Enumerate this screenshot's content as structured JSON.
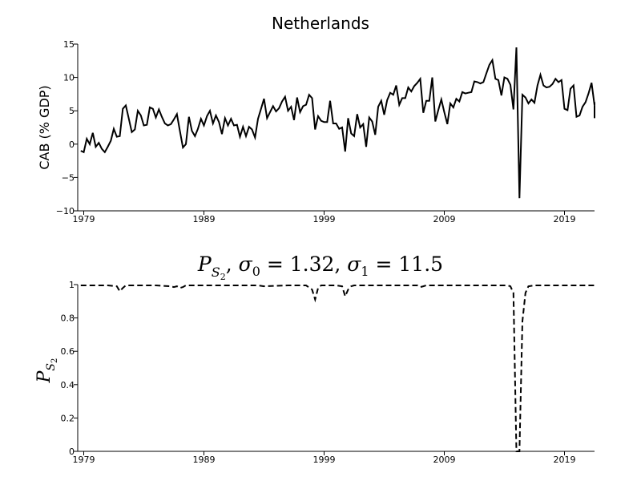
{
  "chart_data": [
    {
      "type": "line",
      "title": "Netherlands",
      "xlabel": "",
      "ylabel": "CAB (% GDP)",
      "xlim": [
        1978.5,
        2021.5
      ],
      "ylim": [
        -10,
        15
      ],
      "xticks": [
        1979,
        1989,
        1999,
        2009,
        2019
      ],
      "xtick_labels": [
        "1979",
        "1989",
        "1999",
        "2009",
        "2019"
      ],
      "yticks": [
        -10,
        -5,
        0,
        5,
        10,
        15
      ],
      "ytick_labels": [
        "−10",
        "−5",
        "0",
        "5",
        "10",
        "15"
      ],
      "grid": false,
      "series": [
        {
          "line_style": "solid",
          "color": "#000000",
          "points": [
            [
              1978.75,
              -1.0
            ],
            [
              1979.0,
              -1.2
            ],
            [
              1979.25,
              0.8
            ],
            [
              1979.5,
              0.0
            ],
            [
              1979.75,
              1.7
            ],
            [
              1980.0,
              -0.4
            ],
            [
              1980.25,
              0.2
            ],
            [
              1980.5,
              -0.7
            ],
            [
              1980.75,
              -1.2
            ],
            [
              1981.0,
              -0.4
            ],
            [
              1981.25,
              0.5
            ],
            [
              1981.5,
              2.3
            ],
            [
              1981.75,
              1.1
            ],
            [
              1982.0,
              1.2
            ],
            [
              1982.25,
              5.3
            ],
            [
              1982.5,
              5.8
            ],
            [
              1982.75,
              3.8
            ],
            [
              1983.0,
              1.8
            ],
            [
              1983.25,
              2.2
            ],
            [
              1983.5,
              5.0
            ],
            [
              1983.75,
              4.3
            ],
            [
              1984.0,
              2.8
            ],
            [
              1984.25,
              2.9
            ],
            [
              1984.5,
              5.5
            ],
            [
              1984.75,
              5.3
            ],
            [
              1985.0,
              4.0
            ],
            [
              1985.25,
              5.2
            ],
            [
              1985.5,
              4.1
            ],
            [
              1985.75,
              3.1
            ],
            [
              1986.0,
              2.8
            ],
            [
              1986.25,
              3.0
            ],
            [
              1986.5,
              3.7
            ],
            [
              1986.75,
              4.5
            ],
            [
              1987.0,
              2.0
            ],
            [
              1987.25,
              -0.5
            ],
            [
              1987.5,
              0.0
            ],
            [
              1987.75,
              4.1
            ],
            [
              1988.0,
              2.0
            ],
            [
              1988.25,
              1.2
            ],
            [
              1988.5,
              2.3
            ],
            [
              1988.75,
              3.8
            ],
            [
              1989.0,
              2.8
            ],
            [
              1989.25,
              4.2
            ],
            [
              1989.5,
              5.0
            ],
            [
              1989.75,
              3.1
            ],
            [
              1990.0,
              4.3
            ],
            [
              1990.25,
              3.3
            ],
            [
              1990.5,
              1.5
            ],
            [
              1990.75,
              3.9
            ],
            [
              1991.0,
              2.8
            ],
            [
              1991.25,
              3.8
            ],
            [
              1991.5,
              2.8
            ],
            [
              1991.75,
              2.9
            ],
            [
              1992.0,
              1.1
            ],
            [
              1992.25,
              2.6
            ],
            [
              1992.5,
              1.2
            ],
            [
              1992.75,
              2.6
            ],
            [
              1993.0,
              2.2
            ],
            [
              1993.25,
              1.0
            ],
            [
              1993.5,
              3.8
            ],
            [
              1993.75,
              5.3
            ],
            [
              1994.0,
              6.8
            ],
            [
              1994.25,
              3.9
            ],
            [
              1994.5,
              4.8
            ],
            [
              1994.75,
              5.7
            ],
            [
              1995.0,
              4.9
            ],
            [
              1995.25,
              5.4
            ],
            [
              1995.5,
              6.4
            ],
            [
              1995.75,
              7.1
            ],
            [
              1996.0,
              5.0
            ],
            [
              1996.25,
              5.6
            ],
            [
              1996.5,
              3.6
            ],
            [
              1996.75,
              7.0
            ],
            [
              1997.0,
              4.8
            ],
            [
              1997.25,
              5.7
            ],
            [
              1997.5,
              5.9
            ],
            [
              1997.75,
              7.4
            ],
            [
              1998.0,
              6.9
            ],
            [
              1998.25,
              2.2
            ],
            [
              1998.5,
              4.2
            ],
            [
              1998.75,
              3.5
            ],
            [
              1999.0,
              3.3
            ],
            [
              1999.25,
              3.3
            ],
            [
              1999.5,
              6.5
            ],
            [
              1999.75,
              3.1
            ],
            [
              2000.0,
              3.1
            ],
            [
              2000.25,
              2.3
            ],
            [
              2000.5,
              2.5
            ],
            [
              2000.75,
              -1.1
            ],
            [
              2001.0,
              3.9
            ],
            [
              2001.25,
              1.6
            ],
            [
              2001.5,
              1.2
            ],
            [
              2001.75,
              4.5
            ],
            [
              2002.0,
              2.5
            ],
            [
              2002.25,
              3.0
            ],
            [
              2002.5,
              -0.4
            ],
            [
              2002.75,
              4.0
            ],
            [
              2003.0,
              3.4
            ],
            [
              2003.25,
              1.4
            ],
            [
              2003.5,
              5.6
            ],
            [
              2003.75,
              6.5
            ],
            [
              2004.0,
              4.4
            ],
            [
              2004.25,
              6.6
            ],
            [
              2004.5,
              7.7
            ],
            [
              2004.75,
              7.4
            ],
            [
              2005.0,
              8.8
            ],
            [
              2005.25,
              5.9
            ],
            [
              2005.5,
              6.9
            ],
            [
              2005.75,
              6.9
            ],
            [
              2006.0,
              8.5
            ],
            [
              2006.25,
              7.9
            ],
            [
              2006.5,
              8.7
            ],
            [
              2006.75,
              9.2
            ],
            [
              2007.0,
              9.8
            ],
            [
              2007.25,
              4.7
            ],
            [
              2007.5,
              6.5
            ],
            [
              2007.75,
              6.5
            ],
            [
              2008.0,
              10.0
            ],
            [
              2008.25,
              3.4
            ],
            [
              2008.5,
              5.1
            ],
            [
              2008.75,
              6.7
            ],
            [
              2009.0,
              4.8
            ],
            [
              2009.25,
              3.0
            ],
            [
              2009.5,
              6.1
            ],
            [
              2009.75,
              5.5
            ],
            [
              2010.0,
              6.8
            ],
            [
              2010.25,
              6.4
            ],
            [
              2010.5,
              7.8
            ],
            [
              2010.75,
              7.6
            ],
            [
              2011.0,
              7.7
            ],
            [
              2011.25,
              7.8
            ],
            [
              2011.5,
              9.4
            ],
            [
              2011.75,
              9.3
            ],
            [
              2012.0,
              9.1
            ],
            [
              2012.25,
              9.3
            ],
            [
              2012.5,
              10.6
            ],
            [
              2012.75,
              11.9
            ],
            [
              2013.0,
              12.6
            ],
            [
              2013.25,
              9.8
            ],
            [
              2013.5,
              9.6
            ],
            [
              2013.75,
              7.3
            ],
            [
              2014.0,
              10.0
            ],
            [
              2014.25,
              9.8
            ],
            [
              2014.5,
              8.9
            ],
            [
              2014.75,
              5.2
            ],
            [
              2015.0,
              14.5
            ],
            [
              2015.25,
              -8.1
            ],
            [
              2015.5,
              7.4
            ],
            [
              2015.75,
              7.0
            ],
            [
              2016.0,
              6.1
            ],
            [
              2016.25,
              6.7
            ],
            [
              2016.5,
              6.2
            ],
            [
              2016.75,
              8.8
            ],
            [
              2017.0,
              10.4
            ],
            [
              2017.25,
              8.8
            ],
            [
              2017.5,
              8.5
            ],
            [
              2017.75,
              8.6
            ],
            [
              2018.0,
              9.0
            ],
            [
              2018.25,
              9.8
            ],
            [
              2018.5,
              9.3
            ],
            [
              2018.75,
              9.6
            ],
            [
              2019.0,
              5.3
            ],
            [
              2019.25,
              5.1
            ],
            [
              2019.5,
              8.3
            ],
            [
              2019.75,
              8.8
            ],
            [
              2020.0,
              4.1
            ],
            [
              2020.25,
              4.3
            ],
            [
              2020.5,
              5.6
            ],
            [
              2020.75,
              6.3
            ],
            [
              2021.0,
              7.6
            ],
            [
              2021.25,
              9.2
            ],
            [
              2021.5,
              5.8
            ],
            [
              2021.75,
              5.9
            ],
            [
              2022.0,
              6.3
            ],
            [
              2022.25,
              3.9
            ]
          ]
        }
      ]
    },
    {
      "type": "line",
      "title_parts": {
        "symbol": "P",
        "sub1": "S",
        "sub2": "2",
        "sep": ", ",
        "sigma0_name": "σ",
        "sigma0_sub": "0",
        "sigma0_value": "1.32",
        "sigma1_name": "σ",
        "sigma1_sub": "1",
        "sigma1_value": "11.5",
        "equals": " = "
      },
      "xlabel": "",
      "ylabel_parts": {
        "symbol": "P",
        "sub1": "S",
        "sub2": "2"
      },
      "xlim": [
        1978.5,
        2021.5
      ],
      "ylim": [
        0,
        1
      ],
      "xticks": [
        1979,
        1989,
        1999,
        2009,
        2019
      ],
      "xtick_labels": [
        "1979",
        "1989",
        "1999",
        "2009",
        "2019"
      ],
      "yticks": [
        0,
        0.2,
        0.4,
        0.6,
        0.8,
        1
      ],
      "ytick_labels": [
        "0",
        "0.2",
        "0.4",
        "0.6",
        "0.8",
        "1"
      ],
      "grid": false,
      "series": [
        {
          "line_style": "dashed",
          "color": "#000000",
          "points": [
            [
              1978.75,
              0.995
            ],
            [
              1980.0,
              0.995
            ],
            [
              1981.0,
              0.995
            ],
            [
              1981.75,
              0.99
            ],
            [
              1982.0,
              0.96
            ],
            [
              1982.25,
              0.98
            ],
            [
              1982.5,
              0.995
            ],
            [
              1985.0,
              0.995
            ],
            [
              1986.25,
              0.99
            ],
            [
              1986.5,
              0.985
            ],
            [
              1986.75,
              0.99
            ],
            [
              1987.0,
              0.98
            ],
            [
              1987.25,
              0.985
            ],
            [
              1987.5,
              0.995
            ],
            [
              1993.5,
              0.995
            ],
            [
              1994.0,
              0.99
            ],
            [
              1996.0,
              0.995
            ],
            [
              1997.5,
              0.995
            ],
            [
              1998.0,
              0.97
            ],
            [
              1998.25,
              0.91
            ],
            [
              1998.5,
              0.98
            ],
            [
              1998.75,
              0.995
            ],
            [
              2000.0,
              0.995
            ],
            [
              2000.5,
              0.99
            ],
            [
              2000.75,
              0.93
            ],
            [
              2001.0,
              0.97
            ],
            [
              2001.25,
              0.99
            ],
            [
              2001.5,
              0.995
            ],
            [
              2006.75,
              0.995
            ],
            [
              2007.0,
              0.985
            ],
            [
              2007.25,
              0.99
            ],
            [
              2007.5,
              0.995
            ],
            [
              2014.25,
              0.995
            ],
            [
              2014.5,
              0.99
            ],
            [
              2014.75,
              0.95
            ],
            [
              2015.0,
              0.0
            ],
            [
              2015.25,
              0.0
            ],
            [
              2015.5,
              0.78
            ],
            [
              2015.75,
              0.95
            ],
            [
              2016.0,
              0.99
            ],
            [
              2016.5,
              0.995
            ],
            [
              2021.0,
              0.995
            ],
            [
              2022.25,
              0.995
            ]
          ]
        }
      ]
    }
  ]
}
